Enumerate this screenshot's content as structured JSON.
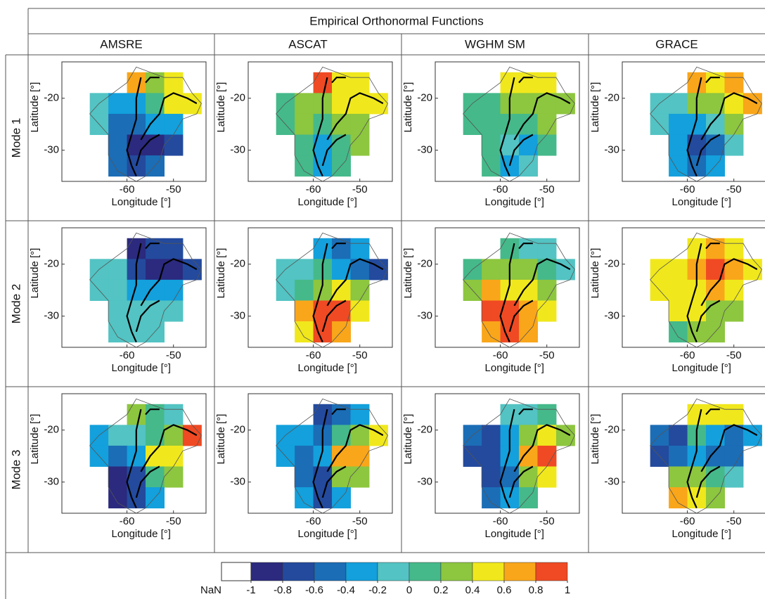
{
  "title": "Empirical Orthonormal Functions",
  "columns": [
    "AMSRE",
    "ASCAT",
    "WGHM SM",
    "GRACE"
  ],
  "rows": [
    "Mode 1",
    "Mode 2",
    "Mode 3"
  ],
  "colorbar": {
    "nan_label": "NaN",
    "nan_color": "#ffffff",
    "colors": [
      "#2b2a7e",
      "#234a9d",
      "#1b6db6",
      "#13a0dc",
      "#53c3c3",
      "#45b98a",
      "#8dc63f",
      "#f0e81c",
      "#f9a61a",
      "#ef4a23"
    ],
    "ticks": [
      -1,
      -0.8,
      -0.6,
      -0.4,
      -0.2,
      0,
      0.2,
      0.4,
      0.6,
      0.8,
      1
    ]
  },
  "chart_data": [
    {
      "type": "heatmap",
      "xlabel": "Longitude [°]",
      "ylabel": "Latitude [°]",
      "xlim": [
        -74,
        -43
      ],
      "ylim": [
        -36,
        -13
      ],
      "xticks": [
        -60,
        -50
      ],
      "yticks": [
        -20,
        -30
      ],
      "x": [
        -66,
        -62,
        -58,
        -54,
        -50,
        -46
      ],
      "y": [
        -17,
        -21,
        -25,
        -29,
        -33
      ],
      "values": [
        [
          null,
          null,
          0.7,
          0.3,
          0.5,
          null
        ],
        [
          -0.1,
          -0.3,
          -0.3,
          0.1,
          0.5,
          0.5
        ],
        [
          -0.1,
          -0.5,
          -0.5,
          -0.3,
          -0.3,
          null
        ],
        [
          null,
          -0.5,
          -0.9,
          -0.9,
          -0.7,
          null
        ],
        [
          null,
          -0.5,
          -0.7,
          -0.5,
          null,
          null
        ]
      ]
    },
    {
      "type": "heatmap",
      "xlabel": "Longitude [°]",
      "ylabel": "Latitude [°]",
      "xlim": [
        -74,
        -43
      ],
      "ylim": [
        -36,
        -13
      ],
      "xticks": [
        -60,
        -50
      ],
      "yticks": [
        -20,
        -30
      ],
      "x": [
        -66,
        -62,
        -58,
        -54,
        -50,
        -46
      ],
      "y": [
        -17,
        -21,
        -25,
        -29,
        -33
      ],
      "values": [
        [
          null,
          null,
          0.9,
          0.5,
          0.5,
          null
        ],
        [
          0.1,
          0.3,
          0.3,
          0.5,
          0.5,
          0.5
        ],
        [
          0.1,
          0.3,
          0.1,
          0.3,
          0.3,
          null
        ],
        [
          null,
          0.1,
          -0.3,
          0.1,
          0.3,
          null
        ],
        [
          null,
          0.1,
          -0.3,
          0.1,
          null,
          null
        ]
      ]
    },
    {
      "type": "heatmap",
      "xlabel": "Longitude [°]",
      "ylabel": "Latitude [°]",
      "xlim": [
        -74,
        -43
      ],
      "ylim": [
        -36,
        -13
      ],
      "xticks": [
        -60,
        -50
      ],
      "yticks": [
        -20,
        -30
      ],
      "x": [
        -66,
        -62,
        -58,
        -54,
        -50,
        -46
      ],
      "y": [
        -17,
        -21,
        -25,
        -29,
        -33
      ],
      "values": [
        [
          null,
          null,
          0.5,
          0.5,
          0.5,
          null
        ],
        [
          0.1,
          0.1,
          0.3,
          0.3,
          0.3,
          0.3
        ],
        [
          0.1,
          0.1,
          0.1,
          0.1,
          0.3,
          null
        ],
        [
          null,
          0.1,
          -0.1,
          -0.3,
          0.1,
          null
        ],
        [
          null,
          0.1,
          -0.3,
          -0.1,
          null,
          null
        ]
      ]
    },
    {
      "type": "heatmap",
      "xlabel": "Longitude [°]",
      "ylabel": "Latitude [°]",
      "xlim": [
        -74,
        -43
      ],
      "ylim": [
        -36,
        -13
      ],
      "xticks": [
        -60,
        -50
      ],
      "yticks": [
        -20,
        -30
      ],
      "x": [
        -66,
        -62,
        -58,
        -54,
        -50,
        -46
      ],
      "y": [
        -17,
        -21,
        -25,
        -29,
        -33
      ],
      "values": [
        [
          null,
          null,
          0.7,
          0.5,
          0.7,
          null
        ],
        [
          -0.1,
          -0.1,
          0.3,
          0.3,
          0.5,
          0.7
        ],
        [
          -0.1,
          -0.3,
          -0.3,
          -0.1,
          0.3,
          null
        ],
        [
          null,
          -0.3,
          -0.7,
          -0.5,
          -0.1,
          null
        ],
        [
          null,
          -0.3,
          -0.5,
          -0.3,
          null,
          null
        ]
      ]
    },
    {
      "type": "heatmap",
      "xlabel": "Longitude [°]",
      "ylabel": "Latitude [°]",
      "xlim": [
        -74,
        -43
      ],
      "ylim": [
        -36,
        -13
      ],
      "xticks": [
        -60,
        -50
      ],
      "yticks": [
        -20,
        -30
      ],
      "x": [
        -66,
        -62,
        -58,
        -54,
        -50,
        -46
      ],
      "y": [
        -17,
        -21,
        -25,
        -29,
        -33
      ],
      "values": [
        [
          null,
          null,
          -0.9,
          -0.7,
          -0.7,
          null
        ],
        [
          -0.1,
          -0.1,
          -0.7,
          -0.9,
          -0.9,
          -0.7
        ],
        [
          -0.1,
          -0.1,
          -0.3,
          -0.3,
          -0.3,
          null
        ],
        [
          null,
          -0.1,
          -0.1,
          -0.1,
          -0.1,
          null
        ],
        [
          null,
          -0.1,
          -0.1,
          -0.1,
          null,
          null
        ]
      ]
    },
    {
      "type": "heatmap",
      "xlabel": "Longitude [°]",
      "ylabel": "Latitude [°]",
      "xlim": [
        -74,
        -43
      ],
      "ylim": [
        -36,
        -13
      ],
      "xticks": [
        -60,
        -50
      ],
      "yticks": [
        -20,
        -30
      ],
      "x": [
        -66,
        -62,
        -58,
        -54,
        -50,
        -46
      ],
      "y": [
        -17,
        -21,
        -25,
        -29,
        -33
      ],
      "values": [
        [
          null,
          null,
          -0.3,
          -0.5,
          -0.3,
          null
        ],
        [
          -0.1,
          -0.1,
          0.1,
          -0.3,
          -0.5,
          -0.7
        ],
        [
          -0.1,
          0.1,
          0.3,
          0.5,
          0.3,
          null
        ],
        [
          null,
          0.7,
          0.9,
          0.9,
          0.5,
          null
        ],
        [
          null,
          0.5,
          0.9,
          0.7,
          null,
          null
        ]
      ]
    },
    {
      "type": "heatmap",
      "xlabel": "Longitude [°]",
      "ylabel": "Latitude [°]",
      "xlim": [
        -74,
        -43
      ],
      "ylim": [
        -36,
        -13
      ],
      "xticks": [
        -60,
        -50
      ],
      "yticks": [
        -20,
        -30
      ],
      "x": [
        -66,
        -62,
        -58,
        -54,
        -50,
        -46
      ],
      "y": [
        -17,
        -21,
        -25,
        -29,
        -33
      ],
      "values": [
        [
          null,
          null,
          0.1,
          -0.1,
          -0.1,
          null
        ],
        [
          0.1,
          0.3,
          0.3,
          0.3,
          0.1,
          -0.1
        ],
        [
          0.3,
          0.7,
          0.5,
          0.5,
          0.3,
          null
        ],
        [
          null,
          0.9,
          0.9,
          0.7,
          0.5,
          null
        ],
        [
          null,
          0.7,
          0.9,
          0.7,
          null,
          null
        ]
      ]
    },
    {
      "type": "heatmap",
      "xlabel": "Longitude [°]",
      "ylabel": "Latitude [°]",
      "xlim": [
        -74,
        -43
      ],
      "ylim": [
        -36,
        -13
      ],
      "xticks": [
        -60,
        -50
      ],
      "yticks": [
        -20,
        -30
      ],
      "x": [
        -66,
        -62,
        -58,
        -54,
        -50,
        -46
      ],
      "y": [
        -17,
        -21,
        -25,
        -29,
        -33
      ],
      "values": [
        [
          null,
          null,
          0.5,
          0.7,
          0.5,
          null
        ],
        [
          0.5,
          0.5,
          0.7,
          0.9,
          0.7,
          0.5
        ],
        [
          0.5,
          0.5,
          0.5,
          0.7,
          0.5,
          null
        ],
        [
          null,
          0.5,
          0.5,
          0.3,
          0.3,
          null
        ],
        [
          null,
          0.1,
          0.3,
          0.3,
          null,
          null
        ]
      ]
    },
    {
      "type": "heatmap",
      "xlabel": "Longitude [°]",
      "ylabel": "Latitude [°]",
      "xlim": [
        -74,
        -43
      ],
      "ylim": [
        -36,
        -13
      ],
      "xticks": [
        -60,
        -50
      ],
      "yticks": [
        -20,
        -30
      ],
      "x": [
        -66,
        -62,
        -58,
        -54,
        -50,
        -46
      ],
      "y": [
        -17,
        -21,
        -25,
        -29,
        -33
      ],
      "values": [
        [
          null,
          null,
          0.3,
          0.1,
          -0.1,
          null
        ],
        [
          -0.3,
          -0.1,
          -0.1,
          0.1,
          0.3,
          0.9
        ],
        [
          -0.3,
          -0.5,
          -0.3,
          0.5,
          0.5,
          null
        ],
        [
          null,
          -0.9,
          -0.7,
          0.1,
          0.3,
          null
        ],
        [
          null,
          -0.9,
          -0.7,
          -0.3,
          null,
          null
        ]
      ]
    },
    {
      "type": "heatmap",
      "xlabel": "Longitude [°]",
      "ylabel": "Latitude [°]",
      "xlim": [
        -74,
        -43
      ],
      "ylim": [
        -36,
        -13
      ],
      "xticks": [
        -60,
        -50
      ],
      "yticks": [
        -20,
        -30
      ],
      "x": [
        -66,
        -62,
        -58,
        -54,
        -50,
        -46
      ],
      "y": [
        -17,
        -21,
        -25,
        -29,
        -33
      ],
      "values": [
        [
          null,
          null,
          -0.7,
          -0.5,
          -0.3,
          null
        ],
        [
          -0.3,
          -0.3,
          -0.5,
          0.1,
          0.3,
          0.5
        ],
        [
          -0.3,
          -0.5,
          -0.3,
          0.7,
          0.7,
          null
        ],
        [
          null,
          -0.5,
          -0.7,
          0.3,
          0.3,
          null
        ],
        [
          null,
          -0.3,
          -0.7,
          -0.3,
          null,
          null
        ]
      ]
    },
    {
      "type": "heatmap",
      "xlabel": "Longitude [°]",
      "ylabel": "Latitude [°]",
      "xlim": [
        -74,
        -43
      ],
      "ylim": [
        -36,
        -13
      ],
      "xticks": [
        -60,
        -50
      ],
      "yticks": [
        -20,
        -30
      ],
      "x": [
        -66,
        -62,
        -58,
        -54,
        -50,
        -46
      ],
      "y": [
        -17,
        -21,
        -25,
        -29,
        -33
      ],
      "values": [
        [
          null,
          null,
          -0.1,
          -0.1,
          0.1,
          null
        ],
        [
          -0.5,
          -0.7,
          -0.3,
          0.3,
          0.5,
          0.3
        ],
        [
          -0.7,
          -0.7,
          -0.3,
          0.7,
          0.9,
          null
        ],
        [
          null,
          -0.7,
          -0.5,
          0.3,
          0.5,
          null
        ],
        [
          null,
          -0.5,
          -0.3,
          0.1,
          null,
          null
        ]
      ]
    },
    {
      "type": "heatmap",
      "xlabel": "Longitude [°]",
      "ylabel": "Latitude [°]",
      "xlim": [
        -74,
        -43
      ],
      "ylim": [
        -36,
        -13
      ],
      "xticks": [
        -60,
        -50
      ],
      "yticks": [
        -20,
        -30
      ],
      "x": [
        -66,
        -62,
        -58,
        -54,
        -50,
        -46
      ],
      "y": [
        -17,
        -21,
        -25,
        -29,
        -33
      ],
      "values": [
        [
          null,
          null,
          0.5,
          0.5,
          0.5,
          null
        ],
        [
          -0.5,
          -0.7,
          0.1,
          -0.3,
          -0.5,
          -0.3
        ],
        [
          -0.7,
          -0.5,
          -0.3,
          -0.5,
          -0.5,
          null
        ],
        [
          null,
          0.3,
          0.3,
          0.1,
          -0.1,
          null
        ],
        [
          null,
          0.7,
          0.5,
          0.3,
          null,
          null
        ]
      ]
    }
  ]
}
